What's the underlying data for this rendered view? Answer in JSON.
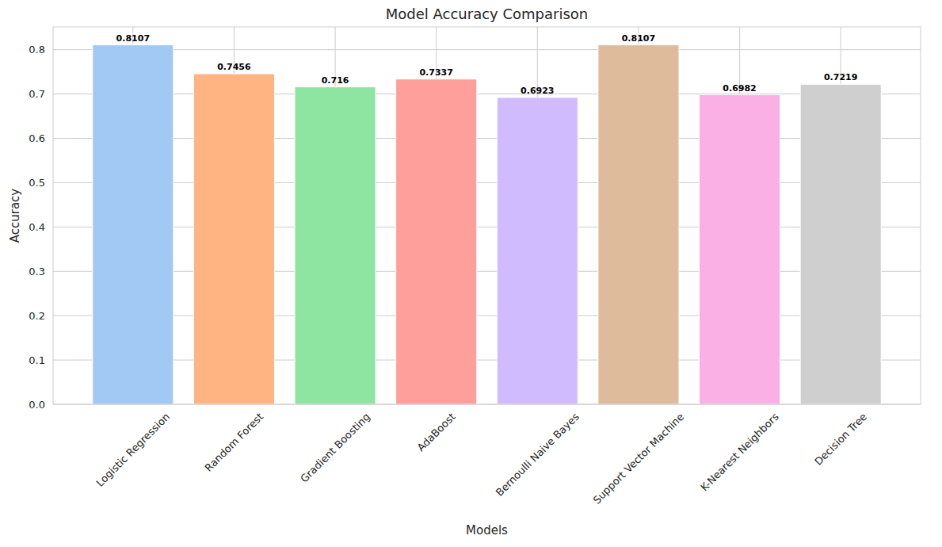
{
  "chart_data": {
    "type": "bar",
    "title": "Model Accuracy Comparison",
    "x_label": "Models",
    "y_label": "Accuracy",
    "categories": [
      "Logistic Regression",
      "Random Forest",
      "Gradient Boosting",
      "AdaBoost",
      "Bernoulli Naive Bayes",
      "Support Vector Machine",
      "K-Nearest Neighbors",
      "Decision Tree"
    ],
    "values": [
      0.8107,
      0.7456,
      0.716,
      0.7337,
      0.6923,
      0.8107,
      0.6982,
      0.7219
    ],
    "colors": [
      "#a1c9f4",
      "#ffb482",
      "#8de5a1",
      "#ff9f9b",
      "#d0bbff",
      "#debb9b",
      "#fab0e4",
      "#cfcfcf"
    ],
    "ylim": [
      0,
      0.8512
    ],
    "yticks": [
      {
        "value": 0,
        "label": "0.0"
      },
      0.1,
      0.2,
      0.3,
      0.4,
      0.5,
      0.6,
      0.7,
      0.8
    ],
    "grid": true,
    "data_labels": true
  }
}
